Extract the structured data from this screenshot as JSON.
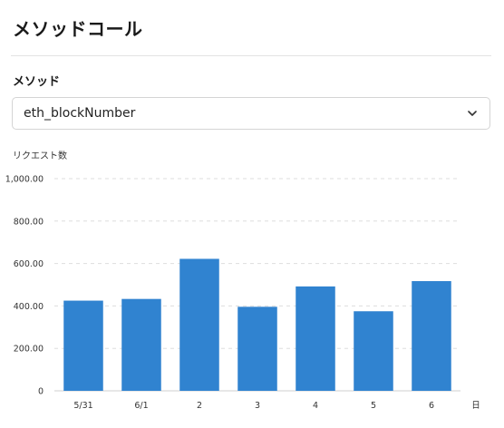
{
  "header": {
    "title": "メソッドコール"
  },
  "method": {
    "label": "メソッド",
    "selected": "eth_blockNumber",
    "chevron_icon": "chevron-down-icon"
  },
  "chart_data": {
    "type": "bar",
    "title": "",
    "ylabel": "リクエスト数",
    "xlabel": "日",
    "categories": [
      "5/31",
      "6/1",
      "2",
      "3",
      "4",
      "5",
      "6"
    ],
    "values": [
      425,
      433,
      622,
      396,
      492,
      375,
      517
    ],
    "ylim": [
      0,
      1000
    ],
    "yticks": [
      0,
      200,
      400,
      600,
      800,
      1000
    ],
    "ytick_labels": [
      "0",
      "200.00",
      "400.00",
      "600.00",
      "800.00",
      "1,000.00"
    ],
    "grid": true,
    "bar_color": "#3083d0",
    "grid_color": "#dddddd"
  }
}
